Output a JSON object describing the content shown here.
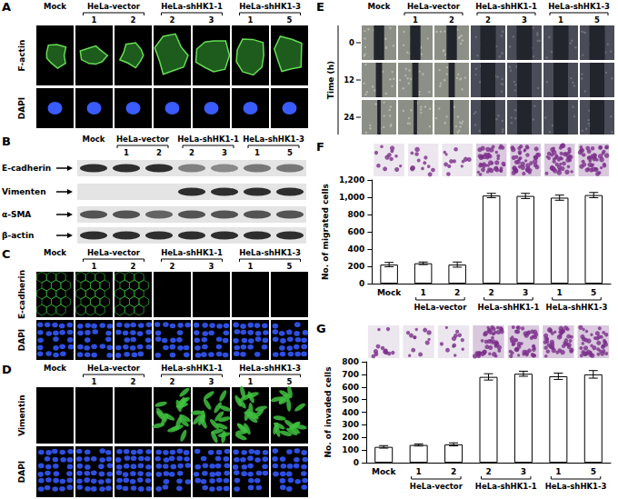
{
  "column_header": {
    "mock": "Mock",
    "groups": [
      {
        "label": "HeLa-vector",
        "lanes": [
          "1",
          "2"
        ]
      },
      {
        "label": "HeLa-shHK1-1",
        "lanes": [
          "2",
          "3"
        ]
      },
      {
        "label": "HeLa-shHK1-3",
        "lanes": [
          "1",
          "5"
        ]
      }
    ]
  },
  "panels": [
    {
      "letter": "A",
      "rows": [
        "F-actin",
        "DAPI"
      ]
    },
    {
      "letter": "B",
      "rows": [
        "E-cadherin",
        "Vimenten",
        "α-SMA",
        "β-actin"
      ]
    },
    {
      "letter": "C",
      "rows": [
        "E-cadherin",
        "DAPI"
      ]
    },
    {
      "letter": "D",
      "rows": [
        "Vimentin",
        "DAPI"
      ]
    },
    {
      "letter": "E",
      "rows_title": "Time (h)",
      "rows": [
        "0",
        "12",
        "24"
      ]
    }
  ],
  "chart_data": [
    {
      "type": "bar",
      "letter": "F",
      "y_label": "No. of migrated cells",
      "categories": [
        "Mock",
        "1",
        "2",
        "2",
        "3",
        "1",
        "5"
      ],
      "groups": [
        {
          "label": "HeLa-vector",
          "from": 1,
          "to": 2
        },
        {
          "label": "HeLa-shHK1-1",
          "from": 3,
          "to": 4
        },
        {
          "label": "HeLa-shHK1-3",
          "from": 5,
          "to": 6
        }
      ],
      "values": [
        220,
        235,
        220,
        1020,
        1015,
        995,
        1025
      ],
      "errors": [
        25,
        15,
        30,
        25,
        30,
        30,
        30
      ],
      "color": "#ffffff",
      "ylim": [
        0,
        1200
      ],
      "yticks": [
        0,
        200,
        400,
        600,
        800,
        1000,
        1200
      ],
      "grid": false
    },
    {
      "type": "bar",
      "letter": "G",
      "y_label": "No. of invaded cells",
      "categories": [
        "Mock",
        "1",
        "2",
        "2",
        "3",
        "1",
        "5"
      ],
      "groups": [
        {
          "label": "HeLa-vector",
          "from": 1,
          "to": 2
        },
        {
          "label": "HeLa-shHK1-1",
          "from": 3,
          "to": 4
        },
        {
          "label": "HeLa-shHK1-3",
          "from": 5,
          "to": 6
        }
      ],
      "values": [
        125,
        140,
        145,
        680,
        705,
        685,
        700
      ],
      "errors": [
        10,
        8,
        12,
        25,
        20,
        25,
        30
      ],
      "color": "#ffffff",
      "ylim": [
        0,
        800
      ],
      "yticks": [
        0,
        100,
        200,
        300,
        400,
        500,
        600,
        700,
        800
      ],
      "grid": false
    }
  ]
}
